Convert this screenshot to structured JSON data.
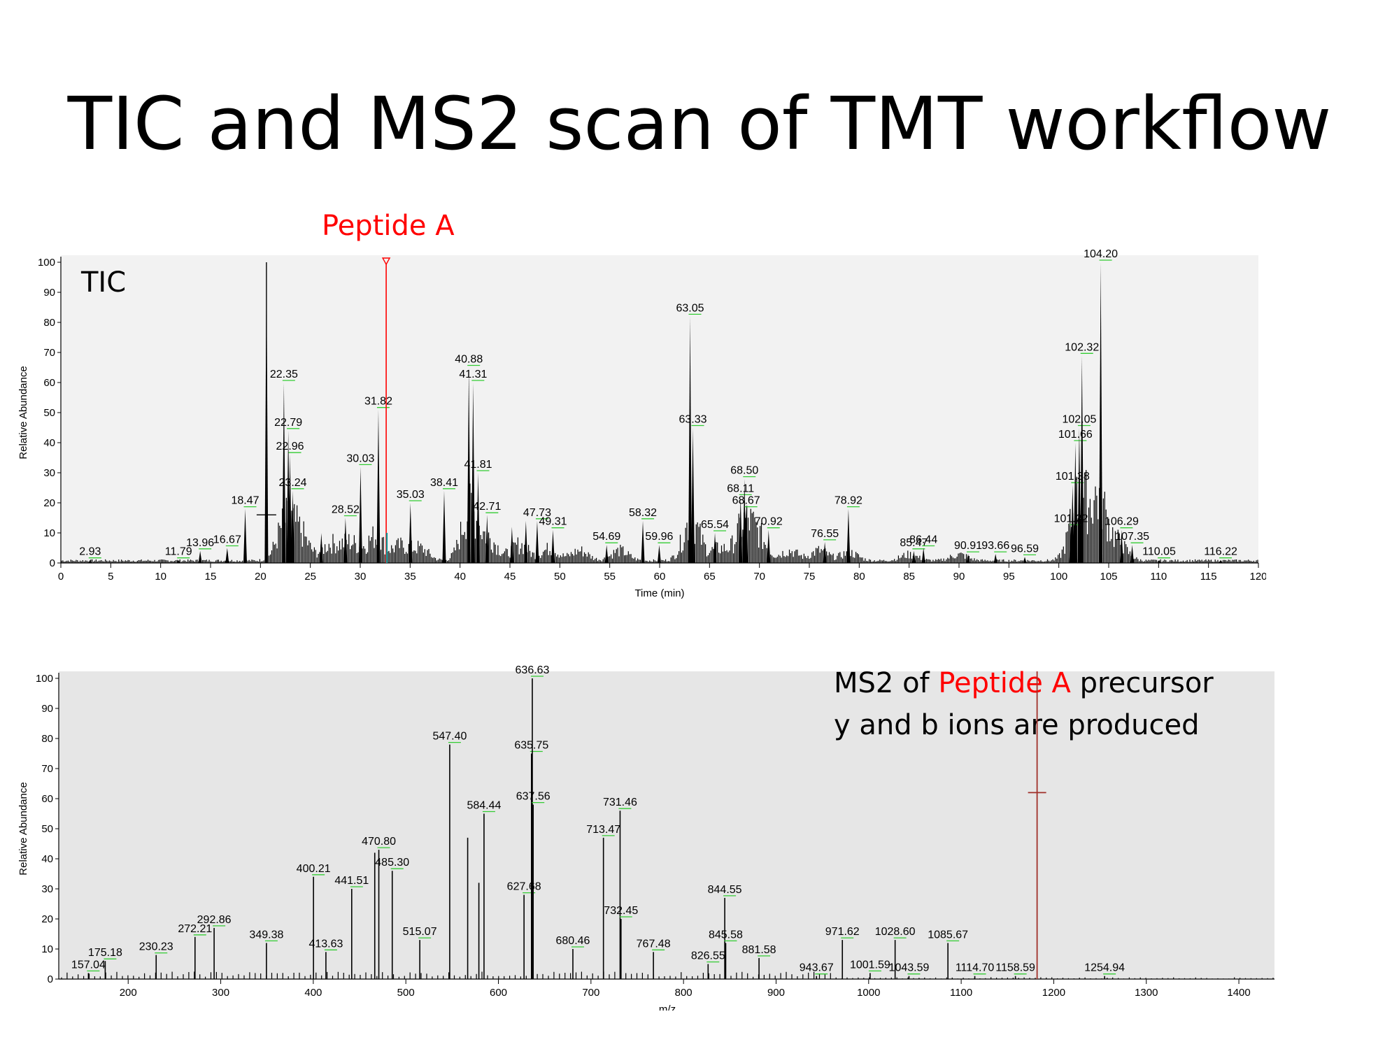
{
  "slide": {
    "title": "TIC and MS2 scan of TMT workflow",
    "peptide_label": "Peptide A"
  },
  "colors": {
    "highlight": "#ff0000",
    "label_leader": "#33cc33",
    "plot_bg_tic": "#f2f2f2",
    "plot_bg_ms2": "#e6e6e6"
  },
  "chart_data": [
    {
      "type": "line",
      "name": "tic",
      "inset_label": "TIC",
      "xlabel": "Time (min)",
      "ylabel": "Relative Abundance",
      "xlim": [
        0,
        120
      ],
      "ylim": [
        0,
        100
      ],
      "x_ticks": [
        0,
        5,
        10,
        15,
        20,
        25,
        30,
        35,
        40,
        45,
        50,
        55,
        60,
        65,
        70,
        75,
        80,
        85,
        90,
        95,
        100,
        105,
        110,
        115,
        120
      ],
      "y_ticks": [
        0,
        10,
        20,
        30,
        40,
        50,
        60,
        70,
        80,
        90,
        100
      ],
      "peaks": [
        {
          "x": 2.93,
          "y": 1,
          "label": "2.93"
        },
        {
          "x": 11.79,
          "y": 1,
          "label": "11.79"
        },
        {
          "x": 13.96,
          "y": 4,
          "label": "13.96"
        },
        {
          "x": 16.67,
          "y": 5,
          "label": "16.67"
        },
        {
          "x": 18.47,
          "y": 18,
          "label": "18.47"
        },
        {
          "x": 20.6,
          "y": 100,
          "label": ""
        },
        {
          "x": 22.35,
          "y": 60,
          "label": "22.35"
        },
        {
          "x": 22.79,
          "y": 44,
          "label": "22.79"
        },
        {
          "x": 22.96,
          "y": 36,
          "label": "22.96"
        },
        {
          "x": 23.24,
          "y": 24,
          "label": "23.24"
        },
        {
          "x": 26.1,
          "y": 10,
          "label": ""
        },
        {
          "x": 28.52,
          "y": 15,
          "label": "28.52"
        },
        {
          "x": 30.03,
          "y": 32,
          "label": "30.03"
        },
        {
          "x": 31.82,
          "y": 51,
          "label": "31.82"
        },
        {
          "x": 35.03,
          "y": 20,
          "label": "35.03"
        },
        {
          "x": 38.41,
          "y": 24,
          "label": "38.41"
        },
        {
          "x": 40.88,
          "y": 65,
          "label": "40.88"
        },
        {
          "x": 41.31,
          "y": 60,
          "label": "41.31"
        },
        {
          "x": 41.81,
          "y": 30,
          "label": "41.81"
        },
        {
          "x": 42.71,
          "y": 16,
          "label": "42.71"
        },
        {
          "x": 45.2,
          "y": 12,
          "label": ""
        },
        {
          "x": 46.6,
          "y": 14,
          "label": ""
        },
        {
          "x": 47.73,
          "y": 14,
          "label": "47.73"
        },
        {
          "x": 49.31,
          "y": 11,
          "label": "49.31"
        },
        {
          "x": 54.69,
          "y": 6,
          "label": "54.69"
        },
        {
          "x": 58.32,
          "y": 14,
          "label": "58.32"
        },
        {
          "x": 59.96,
          "y": 6,
          "label": "59.96"
        },
        {
          "x": 63.05,
          "y": 82,
          "label": "63.05"
        },
        {
          "x": 63.33,
          "y": 45,
          "label": "63.33"
        },
        {
          "x": 65.54,
          "y": 10,
          "label": "65.54"
        },
        {
          "x": 68.11,
          "y": 22,
          "label": "68.11"
        },
        {
          "x": 68.5,
          "y": 28,
          "label": "68.50"
        },
        {
          "x": 68.67,
          "y": 18,
          "label": "68.67"
        },
        {
          "x": 70.92,
          "y": 11,
          "label": "70.92"
        },
        {
          "x": 76.55,
          "y": 7,
          "label": "76.55"
        },
        {
          "x": 78.92,
          "y": 18,
          "label": "78.92"
        },
        {
          "x": 85.47,
          "y": 4,
          "label": "85.47"
        },
        {
          "x": 86.44,
          "y": 5,
          "label": "86.44"
        },
        {
          "x": 90.91,
          "y": 3,
          "label": "90.91"
        },
        {
          "x": 93.66,
          "y": 3,
          "label": "93.66"
        },
        {
          "x": 96.59,
          "y": 2,
          "label": "96.59"
        },
        {
          "x": 101.22,
          "y": 12,
          "label": "101.22"
        },
        {
          "x": 101.38,
          "y": 26,
          "label": "101.38"
        },
        {
          "x": 101.66,
          "y": 40,
          "label": "101.66"
        },
        {
          "x": 102.05,
          "y": 45,
          "label": "102.05"
        },
        {
          "x": 102.32,
          "y": 69,
          "label": "102.32"
        },
        {
          "x": 104.2,
          "y": 100,
          "label": "104.20"
        },
        {
          "x": 106.29,
          "y": 11,
          "label": "106.29"
        },
        {
          "x": 107.35,
          "y": 6,
          "label": "107.35"
        },
        {
          "x": 110.05,
          "y": 1,
          "label": "110.05"
        },
        {
          "x": 116.22,
          "y": 1,
          "label": "116.22"
        }
      ],
      "marker": {
        "x": 32.6,
        "y": 100,
        "note": "Peptide A"
      }
    },
    {
      "type": "bar",
      "name": "ms2",
      "inset_lines": [
        {
          "parts": [
            {
              "text": "MS2 of ",
              "red": false
            },
            {
              "text": "Peptide A",
              "red": true
            },
            {
              "text": " precursor",
              "red": false
            }
          ]
        },
        {
          "parts": [
            {
              "text": "y and b ions are produced",
              "red": false
            }
          ]
        }
      ],
      "xlabel": "m/z",
      "ylabel": "Relative Abundance",
      "xlim": [
        125,
        1440
      ],
      "ylim": [
        0,
        100
      ],
      "x_ticks": [
        200,
        300,
        400,
        500,
        600,
        700,
        800,
        900,
        1000,
        1100,
        1200,
        1300,
        1400
      ],
      "y_ticks": [
        0,
        10,
        20,
        30,
        40,
        50,
        60,
        70,
        80,
        90,
        100
      ],
      "peaks": [
        {
          "x": 157.04,
          "y": 2,
          "label": "157.04"
        },
        {
          "x": 175.18,
          "y": 6,
          "label": "175.18"
        },
        {
          "x": 230.23,
          "y": 8,
          "label": "230.23"
        },
        {
          "x": 272.21,
          "y": 14,
          "label": "272.21"
        },
        {
          "x": 292.86,
          "y": 17,
          "label": "292.86"
        },
        {
          "x": 349.38,
          "y": 12,
          "label": "349.38"
        },
        {
          "x": 400.21,
          "y": 34,
          "label": "400.21"
        },
        {
          "x": 413.63,
          "y": 9,
          "label": "413.63"
        },
        {
          "x": 441.51,
          "y": 30,
          "label": "441.51"
        },
        {
          "x": 466.4,
          "y": 42,
          "label": ""
        },
        {
          "x": 470.8,
          "y": 43,
          "label": "470.80"
        },
        {
          "x": 485.3,
          "y": 36,
          "label": "485.30"
        },
        {
          "x": 515.07,
          "y": 13,
          "label": "515.07"
        },
        {
          "x": 547.4,
          "y": 78,
          "label": "547.40"
        },
        {
          "x": 566.8,
          "y": 47,
          "label": ""
        },
        {
          "x": 584.44,
          "y": 55,
          "label": "584.44"
        },
        {
          "x": 578.9,
          "y": 32,
          "label": ""
        },
        {
          "x": 627.68,
          "y": 28,
          "label": "627.68"
        },
        {
          "x": 635.75,
          "y": 75,
          "label": "635.75"
        },
        {
          "x": 636.63,
          "y": 100,
          "label": "636.63"
        },
        {
          "x": 637.56,
          "y": 58,
          "label": "637.56"
        },
        {
          "x": 680.46,
          "y": 10,
          "label": "680.46"
        },
        {
          "x": 713.47,
          "y": 47,
          "label": "713.47"
        },
        {
          "x": 731.46,
          "y": 56,
          "label": "731.46"
        },
        {
          "x": 732.45,
          "y": 20,
          "label": "732.45"
        },
        {
          "x": 767.48,
          "y": 9,
          "label": "767.48"
        },
        {
          "x": 826.55,
          "y": 5,
          "label": "826.55"
        },
        {
          "x": 844.55,
          "y": 27,
          "label": "844.55"
        },
        {
          "x": 845.58,
          "y": 12,
          "label": "845.58"
        },
        {
          "x": 881.58,
          "y": 7,
          "label": "881.58"
        },
        {
          "x": 943.67,
          "y": 1,
          "label": "943.67"
        },
        {
          "x": 971.62,
          "y": 13,
          "label": "971.62"
        },
        {
          "x": 1001.59,
          "y": 2,
          "label": "1001.59"
        },
        {
          "x": 1028.6,
          "y": 13,
          "label": "1028.60"
        },
        {
          "x": 1043.59,
          "y": 1,
          "label": "1043.59"
        },
        {
          "x": 1085.67,
          "y": 12,
          "label": "1085.67"
        },
        {
          "x": 1114.7,
          "y": 1,
          "label": "1114.70"
        },
        {
          "x": 1158.59,
          "y": 1,
          "label": "1158.59"
        },
        {
          "x": 1254.94,
          "y": 1,
          "label": "1254.94"
        }
      ],
      "precursor": {
        "x": 1182,
        "y_marker": 62
      }
    }
  ]
}
